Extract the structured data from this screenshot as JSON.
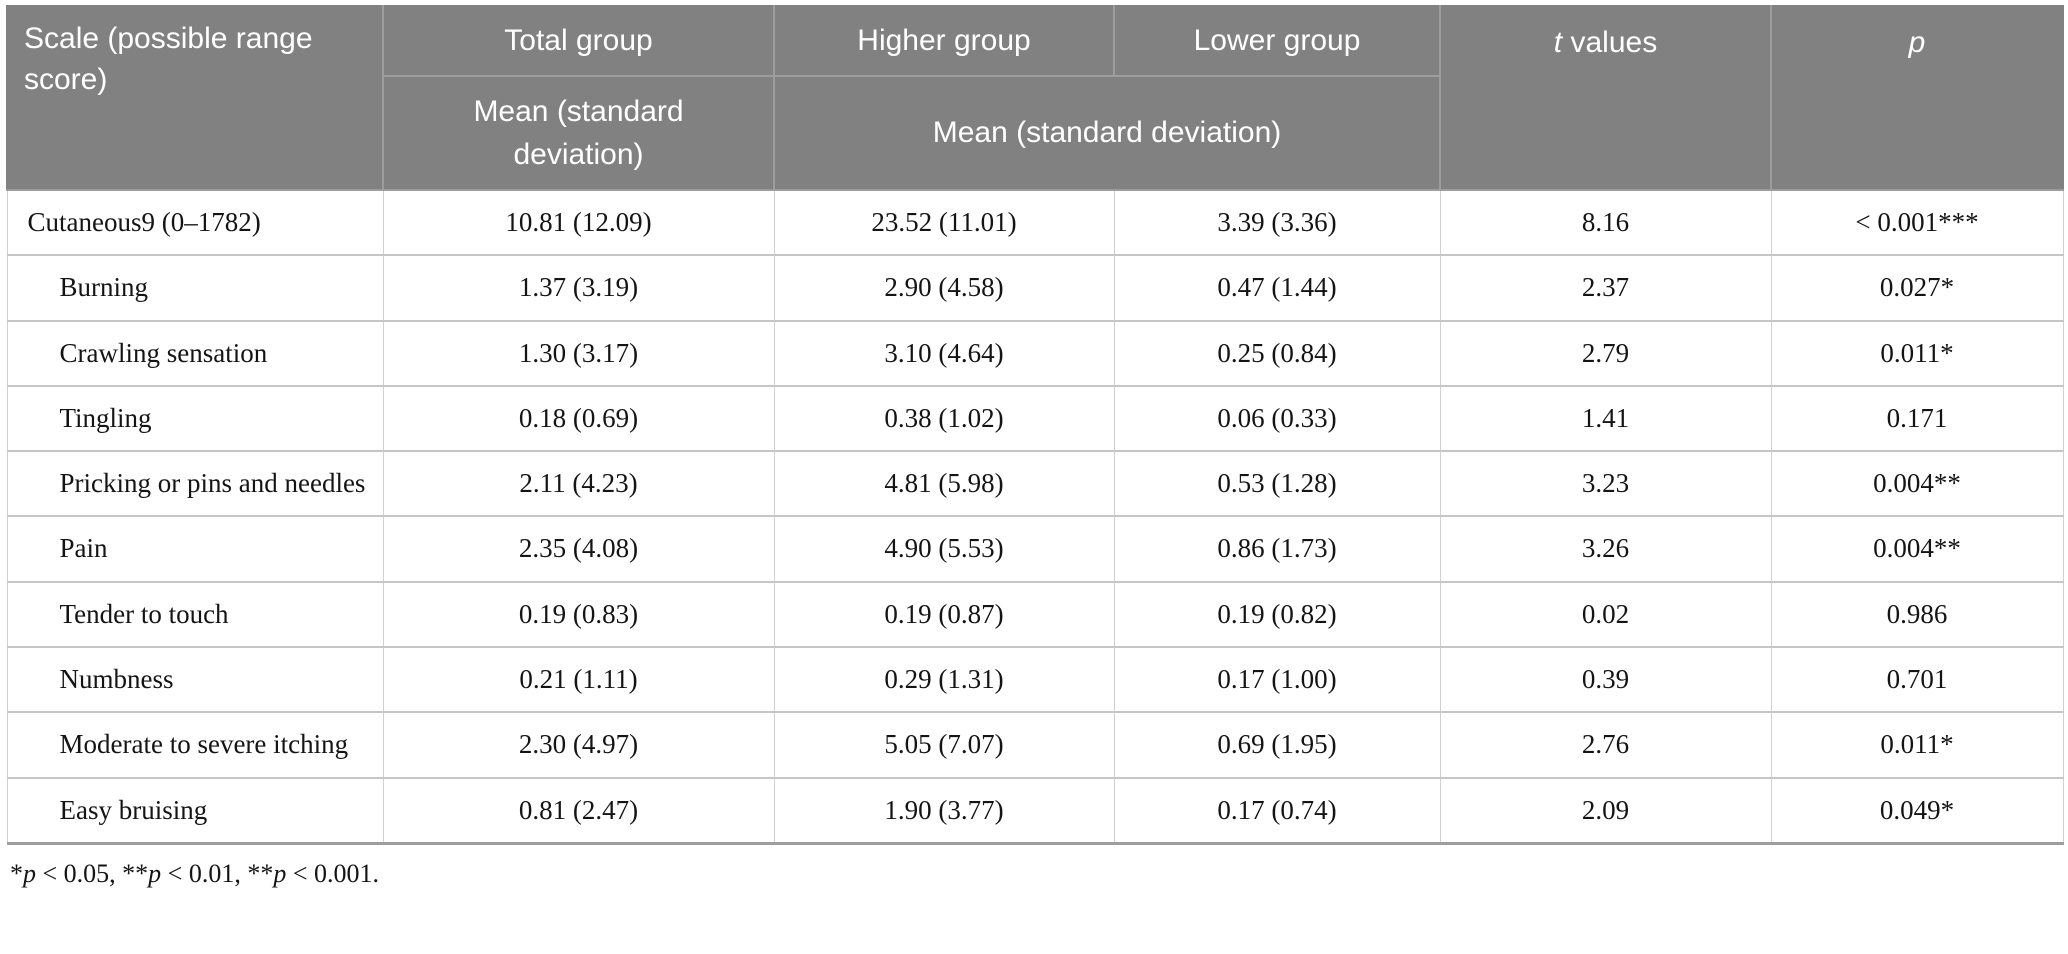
{
  "table": {
    "header": {
      "scale": "Scale (possible range score)",
      "total_group": "Total group",
      "higher_group": "Higher group",
      "lower_group": "Lower group",
      "t_label_italic": "t",
      "t_label_rest": " values",
      "p_label": "p",
      "total_sub": "Mean (standard deviation)",
      "higher_lower_sub": "Mean (standard deviation)"
    },
    "rows": [
      {
        "label": "Cutaneous9 (0–1782)",
        "indent": false,
        "total": "10.81 (12.09)",
        "higher": "23.52 (11.01)",
        "lower": "3.39 (3.36)",
        "t": "8.16",
        "p": "< 0.001***"
      },
      {
        "label": "Burning",
        "indent": true,
        "total": "1.37 (3.19)",
        "higher": "2.90 (4.58)",
        "lower": "0.47 (1.44)",
        "t": "2.37",
        "p": "0.027*"
      },
      {
        "label": "Crawling sensation",
        "indent": true,
        "total": "1.30 (3.17)",
        "higher": "3.10 (4.64)",
        "lower": "0.25 (0.84)",
        "t": "2.79",
        "p": "0.011*"
      },
      {
        "label": "Tingling",
        "indent": true,
        "total": "0.18 (0.69)",
        "higher": "0.38 (1.02)",
        "lower": "0.06 (0.33)",
        "t": "1.41",
        "p": "0.171"
      },
      {
        "label": "Pricking or pins and needles",
        "indent": true,
        "total": "2.11 (4.23)",
        "higher": "4.81 (5.98)",
        "lower": "0.53 (1.28)",
        "t": "3.23",
        "p": "0.004**"
      },
      {
        "label": "Pain",
        "indent": true,
        "total": "2.35 (4.08)",
        "higher": "4.90 (5.53)",
        "lower": "0.86 (1.73)",
        "t": "3.26",
        "p": "0.004**"
      },
      {
        "label": "Tender to touch",
        "indent": true,
        "total": "0.19 (0.83)",
        "higher": "0.19 (0.87)",
        "lower": "0.19 (0.82)",
        "t": "0.02",
        "p": "0.986"
      },
      {
        "label": "Numbness",
        "indent": true,
        "total": "0.21 (1.11)",
        "higher": "0.29 (1.31)",
        "lower": "0.17 (1.00)",
        "t": "0.39",
        "p": "0.701"
      },
      {
        "label": "Moderate to severe itching",
        "indent": true,
        "total": "2.30 (4.97)",
        "higher": "5.05 (7.07)",
        "lower": "0.69 (1.95)",
        "t": "2.76",
        "p": "0.011*"
      },
      {
        "label": "Easy bruising",
        "indent": true,
        "total": "0.81 (2.47)",
        "higher": "1.90 (3.77)",
        "lower": "0.17 (0.74)",
        "t": "2.09",
        "p": "0.049*"
      }
    ],
    "footnote_parts": [
      {
        "text": "*"
      },
      {
        "text": "p",
        "italic": true
      },
      {
        "text": " < 0.05, **"
      },
      {
        "text": "p",
        "italic": true
      },
      {
        "text": " < 0.01, **"
      },
      {
        "text": "p",
        "italic": true
      },
      {
        "text": " < 0.001."
      }
    ]
  },
  "colors": {
    "header_bg": "#818181",
    "header_divider": "#9d9d9d",
    "header_text": "#ffffff",
    "row_divider": "#c6c6c6",
    "column_divider": "#d0d0d0",
    "table_bottom_border": "#9e9e9e",
    "body_text": "#141414"
  }
}
